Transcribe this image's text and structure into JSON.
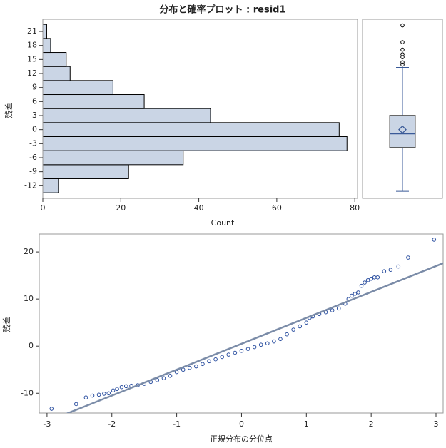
{
  "chart_data": [
    {
      "type": "histogram",
      "orientation": "horizontal",
      "title": "分布と確率プロット : resid1",
      "x_label": "Count",
      "y_label": "残差",
      "bins": [
        -13.5,
        -10.5,
        -7.5,
        -4.5,
        -1.5,
        1.5,
        4.5,
        7.5,
        10.5,
        13.5,
        16.5,
        19.5,
        22.5
      ],
      "values": [
        4,
        22,
        36,
        78,
        76,
        43,
        26,
        18,
        7,
        6,
        2,
        1
      ],
      "color": "#cad5e5",
      "edge_color": "#000000",
      "xlim": [
        0,
        80.7
      ],
      "xticks": [
        0,
        20,
        40,
        60,
        80
      ],
      "ylim": [
        -14.7,
        23.6
      ],
      "yticks": [
        -12,
        -9,
        -6,
        -3,
        0,
        3,
        6,
        9,
        12,
        15,
        18,
        21
      ]
    },
    {
      "type": "box",
      "min": -13.2,
      "q1": -3.8,
      "median": -0.9,
      "mean": 0,
      "q3": 3.06,
      "max": 13.3,
      "outliers": [
        13.9,
        14.4,
        15.5,
        16.1,
        17.1,
        18.7,
        22.3
      ],
      "color": "#cad5e5",
      "line_color": "#3a5a98"
    },
    {
      "type": "scatter",
      "x_label": "正規分布の分位点",
      "y_label": "残差",
      "x": [
        -2.93,
        -2.55,
        -2.4,
        -2.3,
        -2.2,
        -2.12,
        -2.05,
        -1.98,
        -1.92,
        -1.85,
        -1.78,
        -1.7,
        -1.6,
        -1.5,
        -1.4,
        -1.3,
        -1.2,
        -1.1,
        -1.0,
        -0.9,
        -0.8,
        -0.7,
        -0.6,
        -0.5,
        -0.4,
        -0.3,
        -0.2,
        -0.1,
        0,
        0.1,
        0.2,
        0.3,
        0.4,
        0.5,
        0.6,
        0.7,
        0.8,
        0.9,
        1.0,
        1.05,
        1.1,
        1.2,
        1.3,
        1.4,
        1.5,
        1.6,
        1.65,
        1.7,
        1.75,
        1.8,
        1.85,
        1.9,
        1.95,
        2.0,
        2.05,
        2.1,
        2.2,
        2.3,
        2.42,
        2.57,
        2.97
      ],
      "values": [
        -13.3,
        -12.3,
        -10.9,
        -10.5,
        -10.3,
        -10.1,
        -10.0,
        -9.4,
        -9.1,
        -8.7,
        -8.5,
        -8.4,
        -8.3,
        -8.0,
        -7.6,
        -7.2,
        -6.8,
        -6.3,
        -5.5,
        -5.0,
        -4.6,
        -4.3,
        -3.8,
        -3.2,
        -2.8,
        -2.3,
        -1.8,
        -1.4,
        -1.0,
        -0.6,
        -0.2,
        0.3,
        0.6,
        1.0,
        1.5,
        2.5,
        3.5,
        4.2,
        5.0,
        6.0,
        6.3,
        6.8,
        7.2,
        7.6,
        8.0,
        9.0,
        10.0,
        10.7,
        11.1,
        11.4,
        12.8,
        13.5,
        14.0,
        14.3,
        14.6,
        14.6,
        15.9,
        16.2,
        16.9,
        18.8,
        22.6
      ],
      "color": "#2b4fa0",
      "reference_line": {
        "intercept": 0.5,
        "slope": 5.5,
        "color": "#7b8ca8"
      },
      "xlim": [
        -3.12,
        3.11
      ],
      "xticks": [
        -3,
        -2,
        -1,
        0,
        1,
        2,
        3
      ],
      "ylim": [
        -14.2,
        23.8
      ],
      "yticks": [
        -10,
        0,
        10,
        20
      ]
    }
  ]
}
